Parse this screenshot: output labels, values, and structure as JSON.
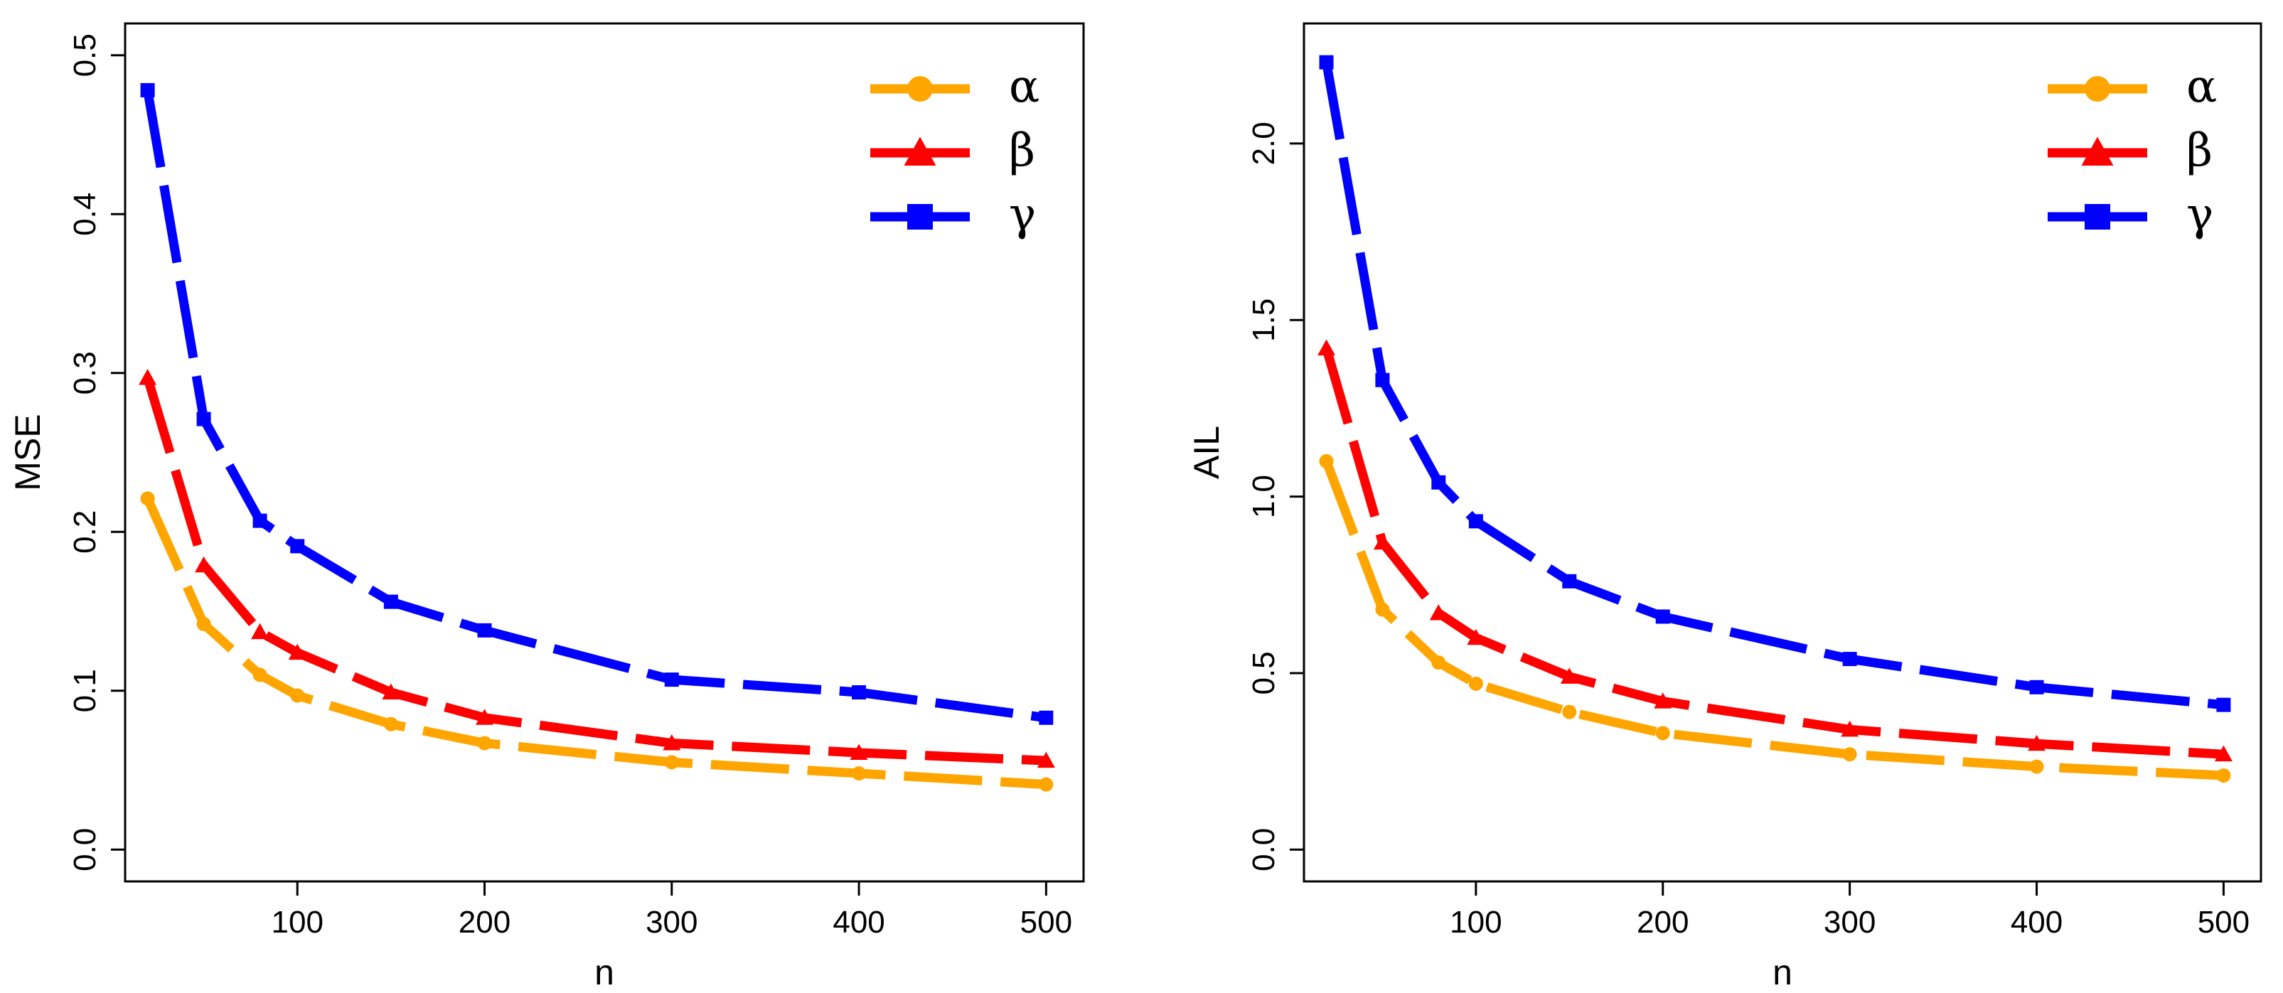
{
  "chart_data": [
    {
      "type": "line",
      "xlabel": "n",
      "ylabel": "MSE",
      "xlim": [
        8,
        520
      ],
      "ylim": [
        -0.02,
        0.52
      ],
      "x_ticks": [
        100,
        200,
        300,
        400,
        500
      ],
      "y_ticks": [
        0.0,
        0.1,
        0.2,
        0.3,
        0.4,
        0.5
      ],
      "x_tick_labels": [
        "100",
        "200",
        "300",
        "400",
        "500"
      ],
      "y_tick_labels": [
        "0.0",
        "0.1",
        "0.2",
        "0.3",
        "0.4",
        "0.5"
      ],
      "legend_position": "top-right",
      "x": [
        20,
        50,
        80,
        100,
        150,
        200,
        300,
        400,
        500
      ],
      "series": [
        {
          "name": "α",
          "color": "#FFA500",
          "marker": "circle",
          "values": [
            0.221,
            0.142,
            0.11,
            0.097,
            0.079,
            0.067,
            0.055,
            0.048,
            0.041
          ]
        },
        {
          "name": "β",
          "color": "#FF0000",
          "marker": "triangle",
          "values": [
            0.297,
            0.179,
            0.137,
            0.124,
            0.099,
            0.083,
            0.067,
            0.061,
            0.056
          ]
        },
        {
          "name": "γ",
          "color": "#0000FF",
          "marker": "square",
          "values": [
            0.478,
            0.271,
            0.207,
            0.191,
            0.156,
            0.138,
            0.107,
            0.099,
            0.083
          ]
        }
      ]
    },
    {
      "type": "line",
      "xlabel": "n",
      "ylabel": "AIL",
      "xlim": [
        8,
        520
      ],
      "ylim": [
        -0.09,
        2.34
      ],
      "x_ticks": [
        100,
        200,
        300,
        400,
        500
      ],
      "y_ticks": [
        0.0,
        0.5,
        1.0,
        1.5,
        2.0
      ],
      "x_tick_labels": [
        "100",
        "200",
        "300",
        "400",
        "500"
      ],
      "y_tick_labels": [
        "0.0",
        "0.5",
        "1.0",
        "1.5",
        "2.0"
      ],
      "legend_position": "top-right",
      "x": [
        20,
        50,
        80,
        100,
        150,
        200,
        300,
        400,
        500
      ],
      "series": [
        {
          "name": "α",
          "color": "#FFA500",
          "marker": "circle",
          "values": [
            1.1,
            0.68,
            0.53,
            0.47,
            0.39,
            0.33,
            0.27,
            0.235,
            0.21
          ]
        },
        {
          "name": "β",
          "color": "#FF0000",
          "marker": "triangle",
          "values": [
            1.42,
            0.87,
            0.67,
            0.6,
            0.49,
            0.42,
            0.34,
            0.3,
            0.27
          ]
        },
        {
          "name": "γ",
          "color": "#0000FF",
          "marker": "square",
          "values": [
            2.23,
            1.33,
            1.04,
            0.93,
            0.76,
            0.66,
            0.54,
            0.46,
            0.41
          ]
        }
      ]
    }
  ]
}
